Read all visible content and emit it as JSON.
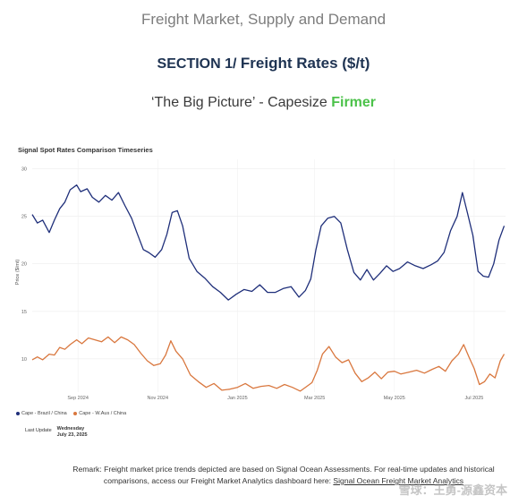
{
  "header": {
    "title": "Freight Market, Supply and Demand",
    "section_label": "SECTION 1/ ",
    "section_name": "Freight Rates ($/t)",
    "subtitle_prefix": "‘The Big Picture’ - Capesize ",
    "subtitle_highlight": "Firmer"
  },
  "chart_data": {
    "type": "line",
    "title": "Signal Spot Rates Comparison Timeseries",
    "ylabel": "Price ($/mt)",
    "xlabel": "",
    "ylim": [
      6.5,
      31
    ],
    "yticks": [
      10,
      15,
      20,
      25,
      30
    ],
    "x_ticks": [
      {
        "label": "Sep 2024",
        "x": "2024-09-01"
      },
      {
        "label": "Nov 2024",
        "x": "2024-11-01"
      },
      {
        "label": "Jan 2025",
        "x": "2025-01-01"
      },
      {
        "label": "Mar 2025",
        "x": "2025-03-01"
      },
      {
        "label": "May 2025",
        "x": "2025-05-01"
      },
      {
        "label": "Jul 2025",
        "x": "2025-07-01"
      }
    ],
    "xlim": [
      "2024-07-28",
      "2025-07-25"
    ],
    "grid": true,
    "legend_position": "bottom-left",
    "series": [
      {
        "name": "Cape - Brazil / China",
        "color": "#1f2f7a",
        "x": [
          "2024-07-28",
          "2024-08-01",
          "2024-08-05",
          "2024-08-10",
          "2024-08-14",
          "2024-08-18",
          "2024-08-22",
          "2024-08-26",
          "2024-08-31",
          "2024-09-03",
          "2024-09-08",
          "2024-09-12",
          "2024-09-17",
          "2024-09-22",
          "2024-09-27",
          "2024-10-02",
          "2024-10-07",
          "2024-10-12",
          "2024-10-16",
          "2024-10-21",
          "2024-10-25",
          "2024-10-30",
          "2024-11-04",
          "2024-11-08",
          "2024-11-12",
          "2024-11-16",
          "2024-11-20",
          "2024-11-25",
          "2024-12-01",
          "2024-12-07",
          "2024-12-13",
          "2024-12-19",
          "2024-12-25",
          "2024-12-31",
          "2025-01-06",
          "2025-01-12",
          "2025-01-18",
          "2025-01-24",
          "2025-01-30",
          "2025-02-05",
          "2025-02-11",
          "2025-02-17",
          "2025-02-22",
          "2025-02-26",
          "2025-03-02",
          "2025-03-06",
          "2025-03-11",
          "2025-03-16",
          "2025-03-21",
          "2025-03-26",
          "2025-03-31",
          "2025-04-05",
          "2025-04-10",
          "2025-04-15",
          "2025-04-20",
          "2025-04-25",
          "2025-04-30",
          "2025-05-05",
          "2025-05-11",
          "2025-05-17",
          "2025-05-23",
          "2025-05-29",
          "2025-06-03",
          "2025-06-08",
          "2025-06-13",
          "2025-06-18",
          "2025-06-22",
          "2025-06-26",
          "2025-06-30",
          "2025-07-04",
          "2025-07-08",
          "2025-07-12",
          "2025-07-16",
          "2025-07-20",
          "2025-07-24"
        ],
        "values": [
          25.2,
          24.3,
          24.6,
          23.3,
          24.6,
          25.8,
          26.5,
          27.8,
          28.3,
          27.6,
          27.9,
          27.0,
          26.5,
          27.2,
          26.7,
          27.5,
          26.1,
          24.8,
          23.3,
          21.5,
          21.2,
          20.7,
          21.5,
          23.1,
          25.4,
          25.6,
          24.0,
          20.6,
          19.2,
          18.5,
          17.6,
          17.0,
          16.2,
          16.8,
          17.3,
          17.1,
          17.8,
          17.0,
          17.0,
          17.4,
          17.6,
          16.5,
          17.2,
          18.4,
          21.5,
          24.0,
          24.8,
          25.0,
          24.3,
          21.5,
          19.1,
          18.3,
          19.4,
          18.3,
          19.0,
          19.8,
          19.2,
          19.5,
          20.2,
          19.8,
          19.5,
          19.9,
          20.3,
          21.2,
          23.5,
          25.0,
          27.5,
          25.3,
          23.0,
          19.2,
          18.7,
          18.6,
          20.0,
          22.5,
          24.0
        ]
      },
      {
        "name": "Cape - W.Aus / China",
        "color": "#d9773e",
        "x": [
          "2024-07-28",
          "2024-08-01",
          "2024-08-05",
          "2024-08-10",
          "2024-08-14",
          "2024-08-18",
          "2024-08-22",
          "2024-08-26",
          "2024-08-31",
          "2024-09-04",
          "2024-09-09",
          "2024-09-14",
          "2024-09-19",
          "2024-09-24",
          "2024-09-29",
          "2024-10-04",
          "2024-10-09",
          "2024-10-14",
          "2024-10-19",
          "2024-10-24",
          "2024-10-29",
          "2024-11-03",
          "2024-11-07",
          "2024-11-11",
          "2024-11-15",
          "2024-11-20",
          "2024-11-26",
          "2024-12-02",
          "2024-12-08",
          "2024-12-14",
          "2024-12-20",
          "2024-12-26",
          "2025-01-01",
          "2025-01-07",
          "2025-01-13",
          "2025-01-19",
          "2025-01-25",
          "2025-01-31",
          "2025-02-06",
          "2025-02-12",
          "2025-02-18",
          "2025-02-23",
          "2025-02-27",
          "2025-03-03",
          "2025-03-07",
          "2025-03-12",
          "2025-03-17",
          "2025-03-22",
          "2025-03-27",
          "2025-04-01",
          "2025-04-06",
          "2025-04-11",
          "2025-04-16",
          "2025-04-21",
          "2025-04-26",
          "2025-05-01",
          "2025-05-06",
          "2025-05-12",
          "2025-05-18",
          "2025-05-24",
          "2025-05-30",
          "2025-06-04",
          "2025-06-09",
          "2025-06-14",
          "2025-06-19",
          "2025-06-23",
          "2025-06-27",
          "2025-07-01",
          "2025-07-05",
          "2025-07-09",
          "2025-07-13",
          "2025-07-17",
          "2025-07-21",
          "2025-07-24"
        ],
        "values": [
          9.9,
          10.2,
          9.9,
          10.5,
          10.4,
          11.2,
          11.0,
          11.5,
          12.0,
          11.6,
          12.2,
          12.0,
          11.8,
          12.3,
          11.7,
          12.3,
          12.0,
          11.5,
          10.6,
          9.8,
          9.3,
          9.5,
          10.4,
          11.9,
          10.8,
          10.0,
          8.3,
          7.6,
          7.0,
          7.4,
          6.7,
          6.8,
          7.0,
          7.4,
          6.9,
          7.1,
          7.2,
          6.9,
          7.3,
          7.0,
          6.6,
          7.1,
          7.5,
          8.8,
          10.5,
          11.3,
          10.2,
          9.6,
          9.9,
          8.5,
          7.6,
          8.0,
          8.6,
          7.9,
          8.6,
          8.7,
          8.4,
          8.6,
          8.8,
          8.5,
          8.9,
          9.2,
          8.7,
          9.8,
          10.5,
          11.5,
          10.2,
          9.0,
          7.3,
          7.6,
          8.4,
          8.0,
          9.8,
          10.5
        ]
      }
    ]
  },
  "legend": {
    "items": [
      {
        "label": "Cape - Brazil / China",
        "color": "#1f2f7a"
      },
      {
        "label": "Cape - W.Aus / China",
        "color": "#d9773e"
      }
    ]
  },
  "last_update": {
    "label": "Last Update",
    "weekday": "Wednesday",
    "date": "July 23, 2025"
  },
  "remark": {
    "text": "Remark: Freight market price trends depicted are based on Signal Ocean Assessments. For real-time updates and historical comparisons, access our Freight Market Analytics dashboard here: ",
    "link_text": "Signal Ocean Freight Market Analytics"
  },
  "watermark": "雪球：王勇-源鑫资本"
}
